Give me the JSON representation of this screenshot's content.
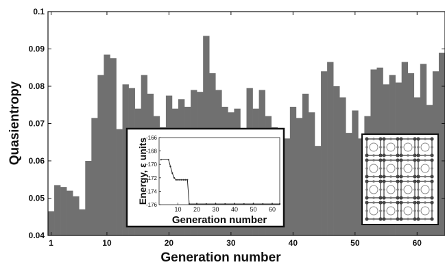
{
  "chart_data": [
    {
      "type": "bar",
      "xlabel": "Generation number",
      "ylabel": "Quasientropy",
      "xlim": [
        1,
        64
      ],
      "ylim": [
        0.04,
        0.1
      ],
      "x_ticks": [
        "1",
        "10",
        "20",
        "30",
        "40",
        "50",
        "60"
      ],
      "y_ticks": [
        "0.04",
        "0.05",
        "0.06",
        "0.07",
        "0.08",
        "0.09",
        "0.1"
      ],
      "x": [
        1,
        2,
        3,
        4,
        5,
        6,
        7,
        8,
        9,
        10,
        11,
        12,
        13,
        14,
        15,
        16,
        17,
        18,
        19,
        20,
        21,
        22,
        23,
        24,
        25,
        26,
        27,
        28,
        29,
        30,
        31,
        32,
        33,
        34,
        35,
        36,
        37,
        38,
        39,
        40,
        41,
        42,
        43,
        44,
        45,
        46,
        47,
        48,
        49,
        50,
        51,
        52,
        53,
        54,
        55,
        56,
        57,
        58,
        59,
        60,
        61,
        62,
        63,
        64
      ],
      "values": [
        0.0465,
        0.0535,
        0.053,
        0.052,
        0.0505,
        0.047,
        0.06,
        0.0715,
        0.083,
        0.0885,
        0.0875,
        0.0685,
        0.0805,
        0.0795,
        0.074,
        0.083,
        0.078,
        0.072,
        0.069,
        0.0775,
        0.074,
        0.0765,
        0.0745,
        0.079,
        0.0785,
        0.0935,
        0.0835,
        0.079,
        0.0745,
        0.073,
        0.074,
        0.0685,
        0.0795,
        0.074,
        0.079,
        0.072,
        0.069,
        0.068,
        0.066,
        0.0745,
        0.0715,
        0.078,
        0.073,
        0.064,
        0.084,
        0.0865,
        0.08,
        0.077,
        0.0675,
        0.0735,
        0.066,
        0.072,
        0.0845,
        0.085,
        0.0805,
        0.083,
        0.081,
        0.0865,
        0.0835,
        0.077,
        0.086,
        0.075,
        0.084,
        0.089
      ],
      "grid": false
    },
    {
      "type": "line",
      "xlabel": "Generation number",
      "ylabel": "Energy, ε units",
      "xlim": [
        0,
        64
      ],
      "ylim": [
        -176,
        -166
      ],
      "x_ticks": [
        "10",
        "20",
        "30",
        "40",
        "50",
        "60"
      ],
      "y_ticks": [
        "-166",
        "-168",
        "-170",
        "-172",
        "-174",
        "-176"
      ],
      "x": [
        1,
        5,
        6,
        7,
        8,
        9,
        10,
        11,
        12,
        13,
        14,
        15,
        16,
        20,
        25,
        30,
        35,
        40,
        45,
        50,
        55,
        60,
        64
      ],
      "values": [
        -169.3,
        -169.3,
        -170.3,
        -171.3,
        -172.0,
        -172.3,
        -172.3,
        -172.3,
        -172.3,
        -172.3,
        -172.3,
        -172.3,
        -175.9,
        -175.9,
        -175.9,
        -175.9,
        -175.9,
        -175.9,
        -175.9,
        -175.9,
        -175.9,
        -175.9,
        -175.9
      ]
    }
  ]
}
